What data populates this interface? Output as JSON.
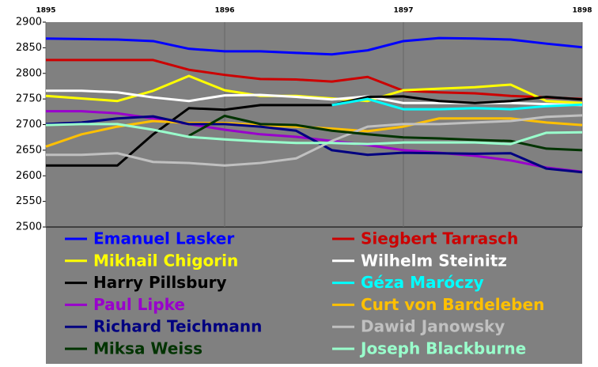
{
  "chart_data": {
    "type": "line",
    "x": [
      1895,
      1895.2,
      1895.4,
      1895.6,
      1895.8,
      1896,
      1896.2,
      1896.4,
      1896.6,
      1896.8,
      1897,
      1897.2,
      1897.4,
      1897.6,
      1897.8,
      1898
    ],
    "xlim": [
      1895,
      1898
    ],
    "xticks": [
      1895,
      1896,
      1897,
      1898
    ],
    "ylim": [
      2500,
      2900
    ],
    "yticks": [
      2500,
      2550,
      2600,
      2650,
      2700,
      2750,
      2800,
      2850,
      2900
    ],
    "grid": true,
    "background": "#808080",
    "series": [
      {
        "name": "Emanuel Lasker",
        "color": "#0000ff",
        "values": [
          2868,
          2867,
          2866,
          2863,
          2848,
          2843,
          2843,
          2840,
          2837,
          2845,
          2863,
          2869,
          2868,
          2866,
          2858,
          2851
        ]
      },
      {
        "name": "Siegbert Tarrasch",
        "color": "#cc0000",
        "values": [
          2826,
          2826,
          2826,
          2826,
          2807,
          2797,
          2789,
          2788,
          2784,
          2793,
          2766,
          2763,
          2761,
          2756,
          2753,
          2750
        ]
      },
      {
        "name": "Mikhail Chigorin",
        "color": "#ffff00",
        "values": [
          2756,
          2751,
          2746,
          2766,
          2795,
          2767,
          2756,
          2756,
          2751,
          2746,
          2767,
          2770,
          2773,
          2778,
          2746,
          2742
        ]
      },
      {
        "name": "Wilhelm Steinitz",
        "color": "#ffffff",
        "values": [
          2766,
          2766,
          2763,
          2753,
          2746,
          2757,
          2758,
          2754,
          2749,
          2755,
          2742,
          2742,
          2742,
          2742,
          2740,
          2738
        ]
      },
      {
        "name": "Harry Pillsbury",
        "color": "#000000",
        "values": [
          2620,
          2620,
          2620,
          2681,
          2732,
          2729,
          2738,
          2738,
          2738,
          2754,
          2755,
          2746,
          2742,
          2746,
          2754,
          2749
        ]
      },
      {
        "name": "Géza Maróczy",
        "color": "#00ffff",
        "values": [
          null,
          null,
          null,
          null,
          null,
          null,
          null,
          null,
          2738,
          2750,
          2730,
          2730,
          2732,
          2730,
          2736,
          2739
        ]
      },
      {
        "name": "Paul Lipke",
        "color": "#9900cc",
        "values": [
          2726,
          2726,
          2722,
          2712,
          2701,
          2690,
          2681,
          2676,
          2668,
          2660,
          2650,
          2645,
          2639,
          2630,
          2616,
          2608
        ]
      },
      {
        "name": "Curt von Bardeleben",
        "color": "#ffc000",
        "values": [
          2657,
          2681,
          2696,
          2707,
          2703,
          2703,
          2699,
          2696,
          2692,
          2687,
          2696,
          2712,
          2712,
          2712,
          2704,
          2699
        ]
      },
      {
        "name": "Richard Teichmann",
        "color": "#000080",
        "values": [
          2701,
          2704,
          2712,
          2716,
          2701,
          2701,
          2696,
          2688,
          2650,
          2641,
          2645,
          2644,
          2643,
          2644,
          2614,
          2607
        ]
      },
      {
        "name": "Dawid Janowsky",
        "color": "#c0c0c0",
        "values": [
          2641,
          2641,
          2644,
          2627,
          2625,
          2620,
          2625,
          2634,
          2668,
          2696,
          2701,
          2701,
          2704,
          2707,
          2715,
          2718
        ]
      },
      {
        "name": "Miksa Weiss",
        "color": "#003300",
        "values": [
          null,
          null,
          null,
          null,
          2678,
          2717,
          2701,
          2699,
          2688,
          2681,
          2675,
          2673,
          2670,
          2668,
          2653,
          2650
        ]
      },
      {
        "name": "Joseph Blackburne",
        "color": "#99ffcc",
        "values": [
          2699,
          2701,
          2701,
          2690,
          2676,
          2671,
          2667,
          2664,
          2664,
          2662,
          2665,
          2665,
          2665,
          2662,
          2684,
          2685
        ]
      }
    ]
  }
}
